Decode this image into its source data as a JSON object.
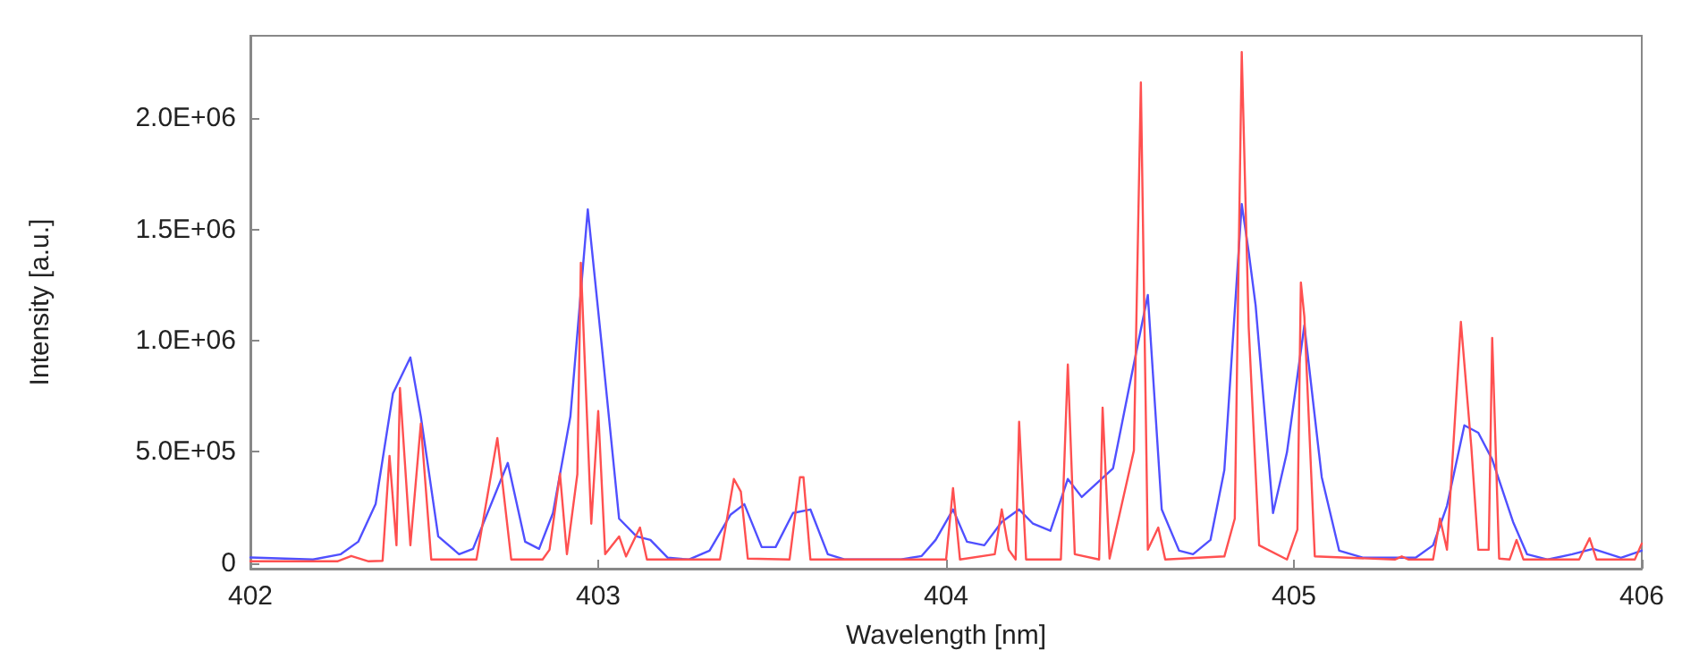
{
  "chart_data": {
    "type": "line",
    "xlabel": "Wavelength [nm]",
    "ylabel": "Intensity [a.u.]",
    "xlim": [
      402,
      406
    ],
    "xticks": [
      402,
      403,
      404,
      405,
      406
    ],
    "ylim": [
      -25000,
      2370000
    ],
    "yticks": [
      0,
      {
        "value": 500000,
        "label": "5.0E+05"
      },
      {
        "value": 1000000,
        "label": "1.0E+06"
      },
      {
        "value": 1500000,
        "label": "1.5E+06"
      },
      {
        "value": 2000000,
        "label": "2.0E+06"
      }
    ],
    "grid": false,
    "series": [
      {
        "color": "#5050ff",
        "x": [
          402.0,
          402.18,
          402.26,
          402.31,
          402.36,
          402.41,
          402.46,
          402.49,
          402.54,
          402.6,
          402.64,
          402.74,
          402.79,
          402.83,
          402.87,
          402.92,
          402.97,
          403.01,
          403.06,
          403.11,
          403.15,
          403.2,
          403.26,
          403.32,
          403.38,
          403.42,
          403.47,
          403.51,
          403.56,
          403.61,
          403.66,
          403.71,
          403.87,
          403.93,
          403.97,
          404.02,
          404.06,
          404.11,
          404.16,
          404.21,
          404.25,
          404.3,
          404.35,
          404.39,
          404.48,
          404.53,
          404.58,
          404.62,
          404.67,
          404.71,
          404.76,
          404.8,
          404.85,
          404.87,
          404.89,
          404.94,
          404.98,
          405.03,
          405.08,
          405.13,
          405.2,
          405.35,
          405.4,
          405.44,
          405.49,
          405.53,
          405.57,
          405.63,
          405.67,
          405.73,
          405.8,
          405.86,
          405.94,
          406.0
        ],
        "values": [
          25000,
          16000,
          40000,
          96000,
          265000,
          763000,
          924000,
          659000,
          120000,
          40000,
          64000,
          450000,
          96000,
          64000,
          225000,
          659000,
          1590000,
          980000,
          200000,
          120000,
          104000,
          24000,
          16000,
          56000,
          217000,
          265000,
          72000,
          72000,
          225000,
          241000,
          40000,
          16000,
          16000,
          32000,
          104000,
          241000,
          96000,
          80000,
          185000,
          241000,
          177000,
          145000,
          378000,
          297000,
          426000,
          819000,
          1205000,
          241000,
          56000,
          40000,
          104000,
          418000,
          1614000,
          1398000,
          1157000,
          225000,
          498000,
          1068000,
          386000,
          56000,
          24000,
          24000,
          80000,
          257000,
          619000,
          586000,
          466000,
          185000,
          40000,
          16000,
          40000,
          64000,
          24000,
          56000
        ]
      },
      {
        "color": "#ff5050",
        "x": [
          402.0,
          402.25,
          402.29,
          402.34,
          402.38,
          402.4,
          402.42,
          402.43,
          402.46,
          402.49,
          402.52,
          402.65,
          402.71,
          402.75,
          402.84,
          402.86,
          402.89,
          402.91,
          402.94,
          402.95,
          402.98,
          403.0,
          403.02,
          403.06,
          403.08,
          403.12,
          403.14,
          403.35,
          403.39,
          403.41,
          403.43,
          403.55,
          403.58,
          403.59,
          403.61,
          404.0,
          404.02,
          404.04,
          404.14,
          404.16,
          404.18,
          404.2,
          404.21,
          404.23,
          404.33,
          404.35,
          404.37,
          404.44,
          404.45,
          404.47,
          404.54,
          404.56,
          404.58,
          404.61,
          404.63,
          404.8,
          404.83,
          404.85,
          404.87,
          404.9,
          404.98,
          405.01,
          405.02,
          405.03,
          405.06,
          405.29,
          405.31,
          405.33,
          405.4,
          405.42,
          405.44,
          405.48,
          405.51,
          405.53,
          405.56,
          405.57,
          405.59,
          405.62,
          405.64,
          405.66,
          405.82,
          405.85,
          405.87,
          405.98,
          406.0
        ],
        "values": [
          8000,
          8000,
          32000,
          8000,
          10000,
          482000,
          80000,
          787000,
          80000,
          627000,
          16000,
          16000,
          562000,
          16000,
          16000,
          60000,
          402000,
          40000,
          400000,
          1350000,
          177000,
          683000,
          40000,
          120000,
          30000,
          160000,
          16000,
          16000,
          378000,
          321000,
          20000,
          16000,
          386000,
          386000,
          16000,
          16000,
          337000,
          16000,
          40000,
          241000,
          60000,
          16000,
          635000,
          16000,
          16000,
          892000,
          40000,
          16000,
          699000,
          20000,
          506000,
          2160000,
          60000,
          160000,
          16000,
          30000,
          200000,
          2297000,
          1060000,
          80000,
          16000,
          150000,
          1261000,
          1108000,
          30000,
          16000,
          30000,
          16000,
          16000,
          200000,
          60000,
          1084000,
          522000,
          60000,
          60000,
          1012000,
          20000,
          16000,
          104000,
          16000,
          16000,
          112000,
          16000,
          16000,
          88000
        ]
      }
    ]
  }
}
